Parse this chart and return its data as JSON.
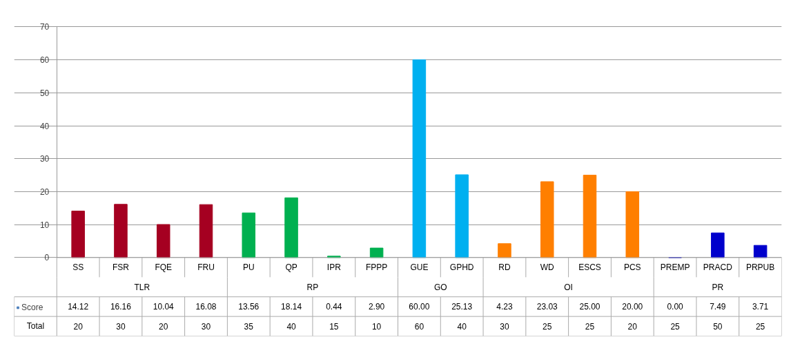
{
  "chart_data": {
    "type": "bar",
    "categories": [
      "SS",
      "FSR",
      "FQE",
      "FRU",
      "PU",
      "QP",
      "IPR",
      "FPPP",
      "GUE",
      "GPHD",
      "RD",
      "WD",
      "ESCS",
      "PCS",
      "PREMP",
      "PRACD",
      "PRPUB"
    ],
    "series": [
      {
        "name": "Score",
        "color": "#4f81bd",
        "values": [
          14.12,
          16.16,
          10.04,
          16.08,
          13.56,
          18.14,
          0.44,
          2.9,
          60.0,
          25.13,
          4.23,
          23.03,
          25.0,
          20.0,
          0.0,
          7.49,
          3.71
        ],
        "colors": [
          "#a50021",
          "#a50021",
          "#a50021",
          "#a50021",
          "#00b050",
          "#00b050",
          "#00b050",
          "#00b050",
          "#00b0f0",
          "#00b0f0",
          "#ff7f00",
          "#ff7f00",
          "#ff7f00",
          "#ff7f00",
          "#0000cc",
          "#0000cc",
          "#0000cc"
        ]
      }
    ],
    "value_labels": [
      "14.12",
      "16.16",
      "10.04",
      "16.08",
      "13.56",
      "18.14",
      "0.44",
      "2.90",
      "60.00",
      "25.13",
      "4.23",
      "23.03",
      "25.00",
      "20.00",
      "0.00",
      "7.49",
      "3.71"
    ],
    "ylim": [
      0,
      70
    ],
    "yticks": [
      0,
      10,
      20,
      30,
      40,
      50,
      60,
      70
    ],
    "grid": "y",
    "legend": "bottom left",
    "annotations": [
      "TLR",
      "RP",
      "GO",
      "OI",
      "PR",
      "Total",
      "20",
      "30",
      "20",
      "30",
      "35",
      "40",
      "15",
      "10",
      "60",
      "40",
      "30",
      "25",
      "25",
      "20",
      "25",
      "50",
      "25"
    ]
  }
}
